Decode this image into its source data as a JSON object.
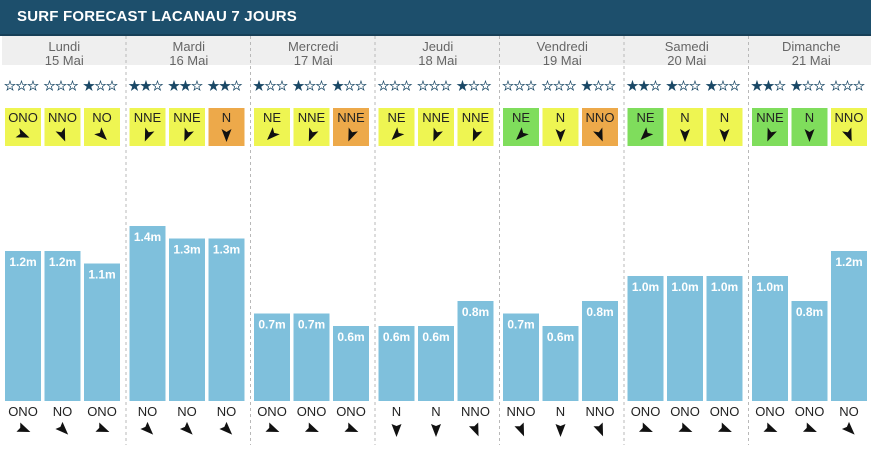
{
  "title": "SURF FORECAST LACANAU 7 JOURS",
  "colors": {
    "header": "#1d4f6c",
    "day_band": "#efefef",
    "bar": "#7fc0dc",
    "wind_yellow": "#eef552",
    "wind_orange": "#eda94a",
    "wind_green": "#7fdd5c",
    "star": "#1a4866"
  },
  "days": [
    {
      "name": "Lundi",
      "date": "15 Mai"
    },
    {
      "name": "Mardi",
      "date": "16 Mai"
    },
    {
      "name": "Mercredi",
      "date": "17 Mai"
    },
    {
      "name": "Jeudi",
      "date": "18 Mai"
    },
    {
      "name": "Vendredi",
      "date": "19 Mai"
    },
    {
      "name": "Samedi",
      "date": "20 Mai"
    },
    {
      "name": "Dimanche",
      "date": "21 Mai"
    }
  ],
  "chart_data": {
    "type": "bar",
    "categories": [
      "Lundi",
      "Lundi",
      "Lundi",
      "Mardi",
      "Mardi",
      "Mardi",
      "Mercredi",
      "Mercredi",
      "Mercredi",
      "Jeudi",
      "Jeudi",
      "Jeudi",
      "Vendredi",
      "Vendredi",
      "Vendredi",
      "Samedi",
      "Samedi",
      "Samedi",
      "Dimanche",
      "Dimanche",
      "Dimanche"
    ],
    "values": [
      1.2,
      1.2,
      1.1,
      1.4,
      1.3,
      1.3,
      0.7,
      0.7,
      0.6,
      0.6,
      0.6,
      0.8,
      0.7,
      0.6,
      0.8,
      1.0,
      1.0,
      1.0,
      1.0,
      0.8,
      1.2
    ],
    "value_labels": [
      "1.2m",
      "1.2m",
      "1.1m",
      "1.4m",
      "1.3m",
      "1.3m",
      "0.7m",
      "0.7m",
      "0.6m",
      "0.6m",
      "0.6m",
      "0.8m",
      "0.7m",
      "0.6m",
      "0.8m",
      "1.0m",
      "1.0m",
      "1.0m",
      "1.0m",
      "0.8m",
      "1.2m"
    ],
    "stars": [
      0,
      0,
      1,
      2,
      2,
      2,
      1,
      1,
      1,
      0,
      0,
      1,
      0,
      0,
      1,
      2,
      1,
      1,
      2,
      1,
      0
    ],
    "wind": [
      {
        "dir": "ONO",
        "deg": 112.5,
        "color": "yellow"
      },
      {
        "dir": "NNO",
        "deg": 157.5,
        "color": "yellow"
      },
      {
        "dir": "NO",
        "deg": 135,
        "color": "yellow"
      },
      {
        "dir": "NNE",
        "deg": 202.5,
        "color": "yellow"
      },
      {
        "dir": "NNE",
        "deg": 202.5,
        "color": "yellow"
      },
      {
        "dir": "N",
        "deg": 180,
        "color": "orange"
      },
      {
        "dir": "NE",
        "deg": 225,
        "color": "yellow"
      },
      {
        "dir": "NNE",
        "deg": 202.5,
        "color": "yellow"
      },
      {
        "dir": "NNE",
        "deg": 202.5,
        "color": "orange"
      },
      {
        "dir": "NE",
        "deg": 225,
        "color": "yellow"
      },
      {
        "dir": "NNE",
        "deg": 202.5,
        "color": "yellow"
      },
      {
        "dir": "NNE",
        "deg": 202.5,
        "color": "yellow"
      },
      {
        "dir": "NE",
        "deg": 225,
        "color": "green"
      },
      {
        "dir": "N",
        "deg": 180,
        "color": "yellow"
      },
      {
        "dir": "NNO",
        "deg": 157.5,
        "color": "orange"
      },
      {
        "dir": "NE",
        "deg": 225,
        "color": "green"
      },
      {
        "dir": "N",
        "deg": 180,
        "color": "yellow"
      },
      {
        "dir": "N",
        "deg": 180,
        "color": "yellow"
      },
      {
        "dir": "NNE",
        "deg": 202.5,
        "color": "green"
      },
      {
        "dir": "N",
        "deg": 180,
        "color": "green"
      },
      {
        "dir": "NNO",
        "deg": 157.5,
        "color": "yellow"
      }
    ],
    "swell": [
      {
        "dir": "ONO",
        "deg": 112.5
      },
      {
        "dir": "NO",
        "deg": 135
      },
      {
        "dir": "ONO",
        "deg": 112.5
      },
      {
        "dir": "NO",
        "deg": 135
      },
      {
        "dir": "NO",
        "deg": 135
      },
      {
        "dir": "NO",
        "deg": 135
      },
      {
        "dir": "ONO",
        "deg": 112.5
      },
      {
        "dir": "ONO",
        "deg": 112.5
      },
      {
        "dir": "ONO",
        "deg": 112.5
      },
      {
        "dir": "N",
        "deg": 180
      },
      {
        "dir": "N",
        "deg": 180
      },
      {
        "dir": "NNO",
        "deg": 157.5
      },
      {
        "dir": "NNO",
        "deg": 157.5
      },
      {
        "dir": "N",
        "deg": 180
      },
      {
        "dir": "NNO",
        "deg": 157.5
      },
      {
        "dir": "ONO",
        "deg": 112.5
      },
      {
        "dir": "ONO",
        "deg": 112.5
      },
      {
        "dir": "ONO",
        "deg": 112.5
      },
      {
        "dir": "ONO",
        "deg": 112.5
      },
      {
        "dir": "ONO",
        "deg": 112.5
      },
      {
        "dir": "NO",
        "deg": 135
      }
    ]
  }
}
